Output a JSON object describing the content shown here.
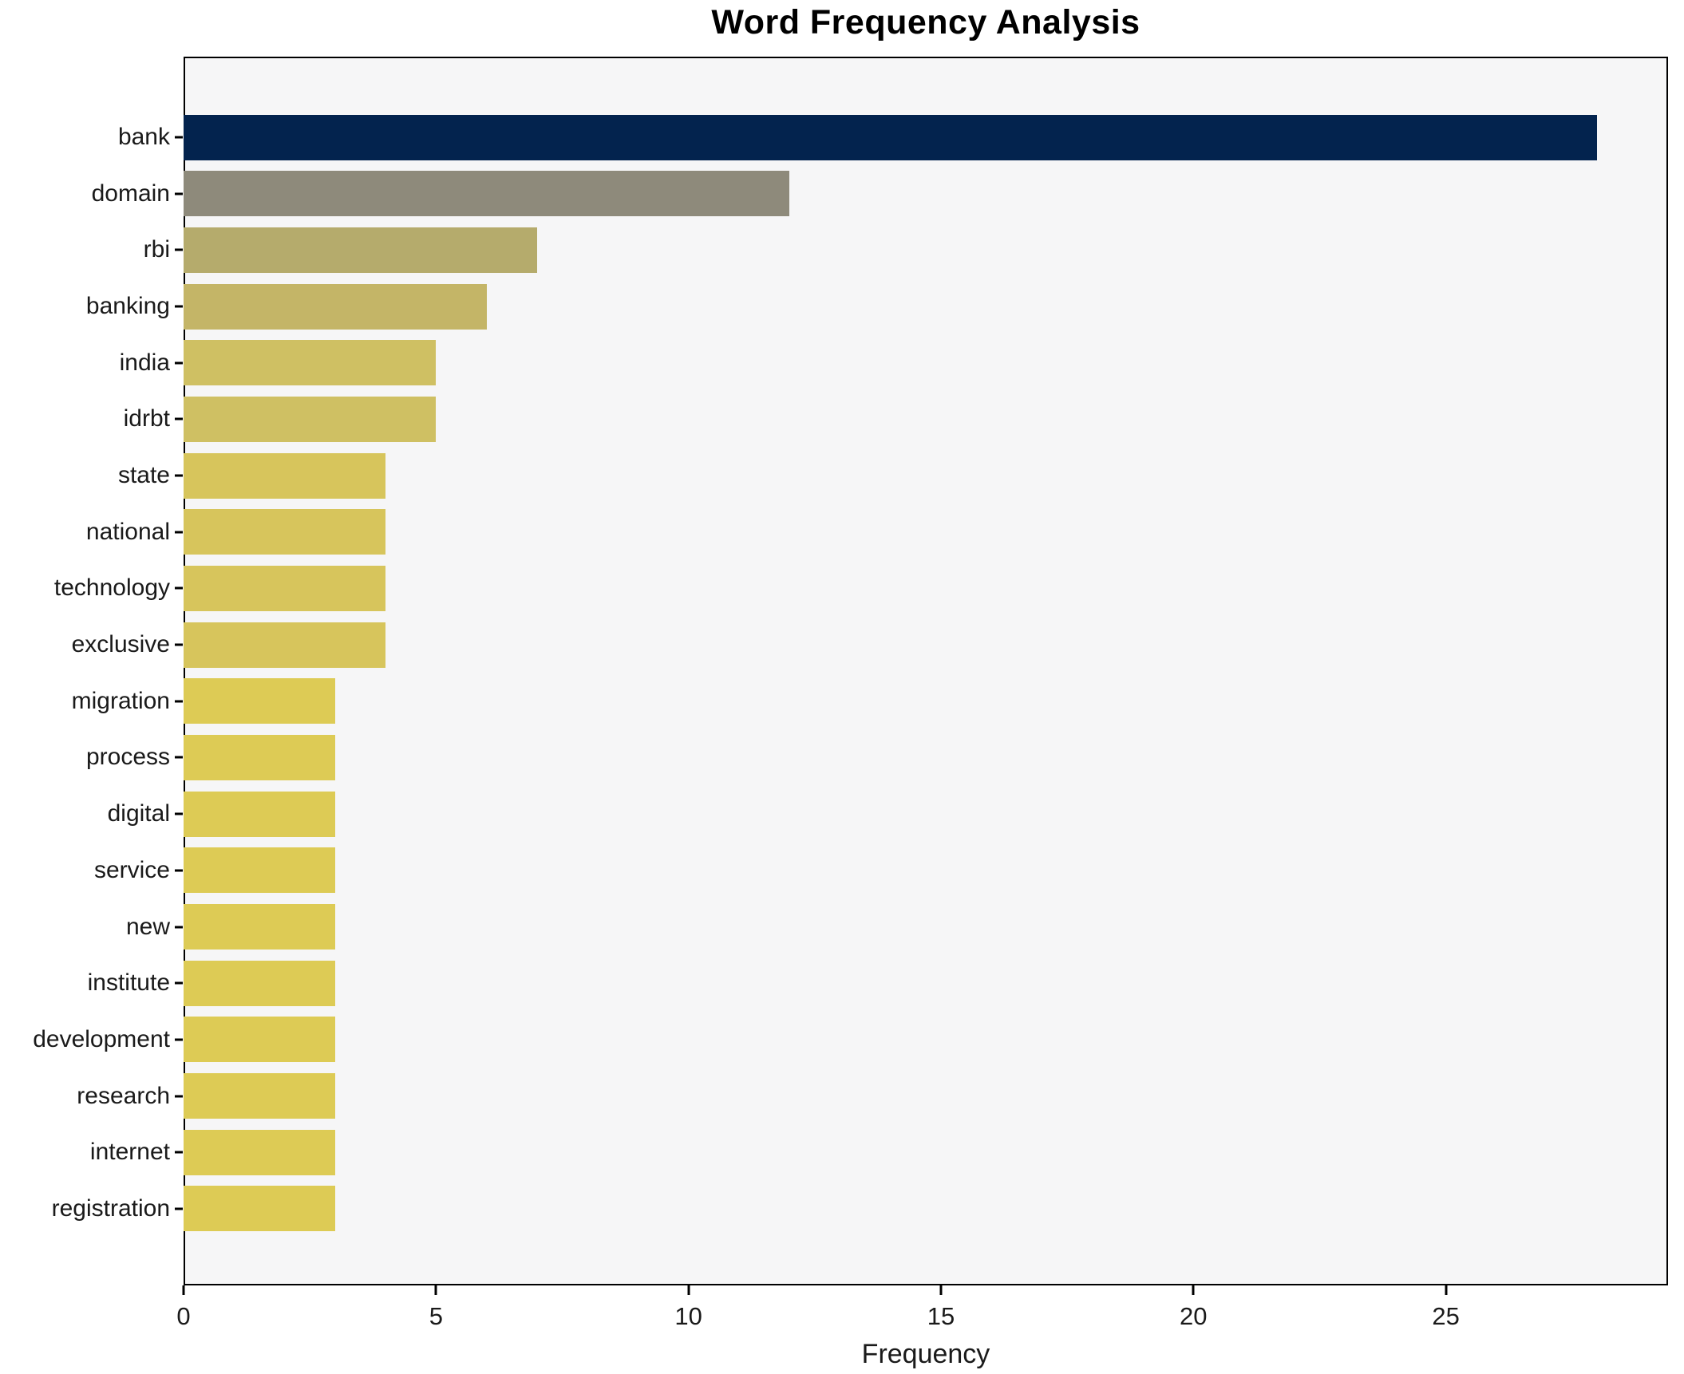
{
  "title": "Word Frequency Analysis",
  "chart_data": {
    "type": "bar",
    "orientation": "horizontal",
    "title": "Word Frequency Analysis",
    "xlabel": "Frequency",
    "ylabel": "",
    "categories": [
      "bank",
      "domain",
      "rbi",
      "banking",
      "india",
      "idrbt",
      "state",
      "national",
      "technology",
      "exclusive",
      "migration",
      "process",
      "digital",
      "service",
      "new",
      "institute",
      "development",
      "research",
      "internet",
      "registration"
    ],
    "values": [
      28,
      12,
      7,
      6,
      5,
      5,
      4,
      4,
      4,
      4,
      3,
      3,
      3,
      3,
      3,
      3,
      3,
      3,
      3,
      3
    ],
    "bar_colors": [
      "#03234e",
      "#8e8a7b",
      "#b5ab6c",
      "#c4b567",
      "#cfc063",
      "#cfc063",
      "#d7c55c",
      "#d7c55c",
      "#d7c55c",
      "#d7c55c",
      "#ddcb55",
      "#ddcb55",
      "#ddcb55",
      "#ddcb55",
      "#ddcb55",
      "#ddcb55",
      "#ddcb55",
      "#ddcb55",
      "#ddcb55",
      "#ddcb55"
    ],
    "xlim": [
      0,
      29.4
    ],
    "x_ticks": [
      0,
      5,
      10,
      15,
      20,
      25
    ],
    "grid": false,
    "legend": "none",
    "plot_background": "#f6f6f7",
    "figure_background": "#ffffff",
    "spine_color": "#000000"
  }
}
